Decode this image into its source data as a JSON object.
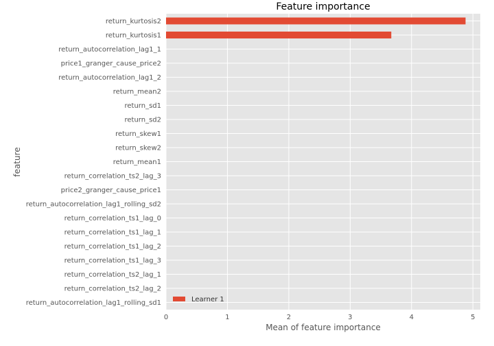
{
  "chart_data": {
    "type": "bar",
    "orientation": "horizontal",
    "title": "Feature importance",
    "xlabel": "Mean of feature importance",
    "ylabel": "feature",
    "xlim": [
      0,
      5.12
    ],
    "xticks": [
      0,
      1,
      2,
      3,
      4,
      5
    ],
    "grid": true,
    "legend_position": "bottom-left",
    "categories": [
      "return_kurtosis2",
      "return_kurtosis1",
      "return_autocorrelation_lag1_1",
      "price1_granger_cause_price2",
      "return_autocorrelation_lag1_2",
      "return_mean2",
      "return_sd1",
      "return_sd2",
      "return_skew1",
      "return_skew2",
      "return_mean1",
      "return_correlation_ts2_lag_3",
      "price2_granger_cause_price1",
      "return_autocorrelation_lag1_rolling_sd2",
      "return_correlation_ts1_lag_0",
      "return_correlation_ts1_lag_1",
      "return_correlation_ts1_lag_2",
      "return_correlation_ts1_lag_3",
      "return_correlation_ts2_lag_1",
      "return_correlation_ts2_lag_2",
      "return_autocorrelation_lag1_rolling_sd1"
    ],
    "series": [
      {
        "name": "Learner 1",
        "color": "#E24A33",
        "values": [
          4.88,
          3.67,
          0,
          0,
          0,
          0,
          0,
          0,
          0,
          0,
          0,
          0,
          0,
          0,
          0,
          0,
          0,
          0,
          0,
          0,
          0
        ]
      }
    ]
  },
  "colors": {
    "plot_background": "#E5E5E5",
    "grid": "#FFFFFF",
    "text": "#555555"
  }
}
